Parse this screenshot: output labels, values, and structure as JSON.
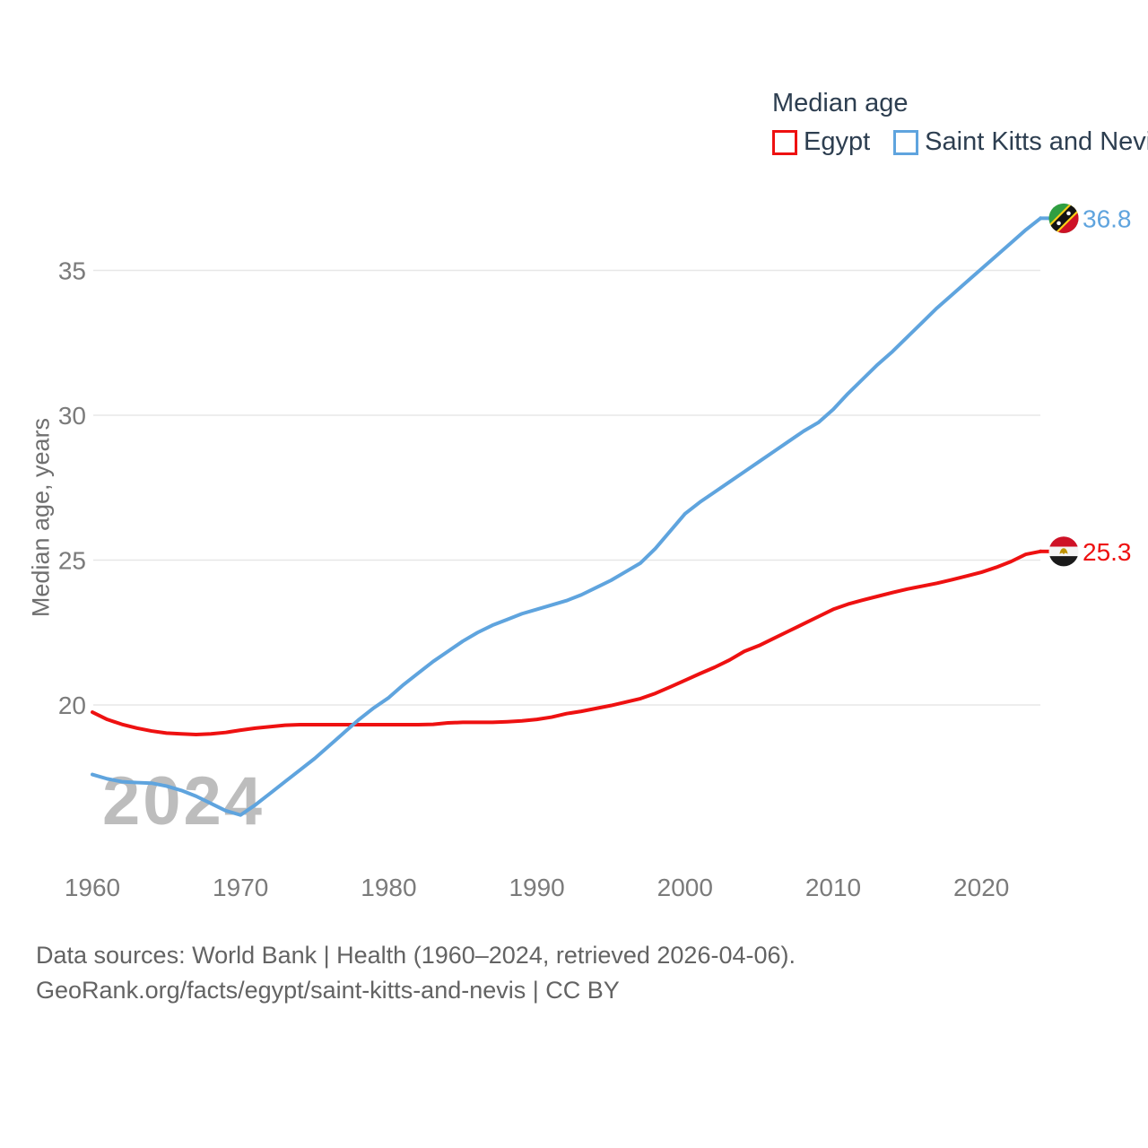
{
  "legend": {
    "title": "Median age",
    "items": [
      {
        "label": "Egypt",
        "color": "#ee1111"
      },
      {
        "label": "Saint Kitts and Nevis",
        "color": "#5fa4de"
      }
    ]
  },
  "watermark": "2024",
  "y_axis": {
    "label": "Median age, years"
  },
  "footer": {
    "line1": "Data sources: World Bank | Health (1960–2024, retrieved 2026-04-06).",
    "line2": "GeoRank.org/facts/egypt/saint-kitts-and-nevis | CC BY"
  },
  "chart_data": {
    "type": "line",
    "title": "Median age",
    "ylabel": "Median age, years",
    "grid": "horizontal",
    "legend_position": "top-right",
    "ylim": [
      15.5,
      37.5
    ],
    "y_ticks": [
      20,
      25,
      30,
      35
    ],
    "x_ticks": [
      1960,
      1970,
      1980,
      1990,
      2000,
      2010,
      2020
    ],
    "years": [
      1960,
      1961,
      1962,
      1963,
      1964,
      1965,
      1966,
      1967,
      1968,
      1969,
      1970,
      1971,
      1972,
      1973,
      1974,
      1975,
      1976,
      1977,
      1978,
      1979,
      1980,
      1981,
      1982,
      1983,
      1984,
      1985,
      1986,
      1987,
      1988,
      1989,
      1990,
      1991,
      1992,
      1993,
      1994,
      1995,
      1996,
      1997,
      1998,
      1999,
      2000,
      2001,
      2002,
      2003,
      2004,
      2005,
      2006,
      2007,
      2008,
      2009,
      2010,
      2011,
      2012,
      2013,
      2014,
      2015,
      2016,
      2017,
      2018,
      2019,
      2020,
      2021,
      2022,
      2023,
      2024
    ],
    "series": [
      {
        "name": "Egypt",
        "color": "#ee1111",
        "flag": "egypt",
        "end_label": "25.3",
        "values": [
          19.75,
          19.5,
          19.33,
          19.2,
          19.1,
          19.03,
          19.0,
          18.98,
          19.0,
          19.05,
          19.13,
          19.2,
          19.25,
          19.3,
          19.32,
          19.32,
          19.32,
          19.32,
          19.32,
          19.32,
          19.32,
          19.32,
          19.32,
          19.33,
          19.38,
          19.4,
          19.4,
          19.4,
          19.42,
          19.45,
          19.5,
          19.58,
          19.7,
          19.78,
          19.88,
          19.98,
          20.1,
          20.22,
          20.4,
          20.62,
          20.85,
          21.08,
          21.3,
          21.55,
          21.85,
          22.05,
          22.3,
          22.55,
          22.8,
          23.05,
          23.3,
          23.48,
          23.62,
          23.75,
          23.88,
          24.0,
          24.1,
          24.2,
          24.32,
          24.45,
          24.58,
          24.75,
          24.95,
          25.2,
          25.3
        ]
      },
      {
        "name": "Saint Kitts and Nevis",
        "color": "#5fa4de",
        "flag": "skn",
        "end_label": "36.8",
        "values": [
          17.6,
          17.45,
          17.35,
          17.32,
          17.3,
          17.2,
          17.05,
          16.85,
          16.6,
          16.35,
          16.2,
          16.55,
          16.95,
          17.35,
          17.75,
          18.15,
          18.6,
          19.05,
          19.5,
          19.9,
          20.25,
          20.7,
          21.1,
          21.5,
          21.85,
          22.2,
          22.5,
          22.75,
          22.95,
          23.15,
          23.3,
          23.45,
          23.6,
          23.8,
          24.05,
          24.3,
          24.6,
          24.9,
          25.4,
          26.0,
          26.6,
          27.0,
          27.35,
          27.7,
          28.05,
          28.4,
          28.75,
          29.1,
          29.45,
          29.75,
          30.2,
          30.75,
          31.25,
          31.75,
          32.2,
          32.7,
          33.2,
          33.7,
          34.15,
          34.6,
          35.05,
          35.5,
          35.95,
          36.4,
          36.8
        ]
      }
    ]
  }
}
